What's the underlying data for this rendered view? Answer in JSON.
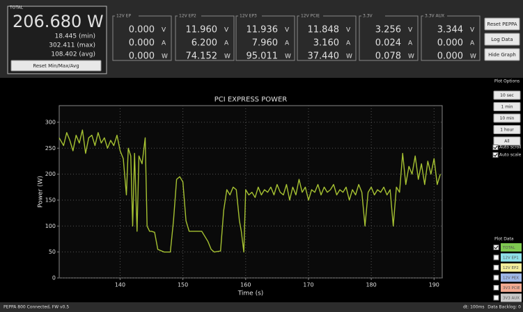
{
  "total": {
    "label": "TOTAL",
    "value": "206.680 W",
    "min": "18.445 (min)",
    "max": "302.411 (max)",
    "avg": "108.402 (avg)",
    "reset": "Reset Min/Max/Avg"
  },
  "channels": [
    {
      "name": "12V EP",
      "rows": [
        {
          "value": "0.000",
          "unit": "V"
        },
        {
          "value": "0.000",
          "unit": "A"
        },
        {
          "value": "0.000",
          "unit": "W"
        }
      ]
    },
    {
      "name": "12V EP2",
      "rows": [
        {
          "value": "11.960",
          "unit": "V"
        },
        {
          "value": "6.200",
          "unit": "A"
        },
        {
          "value": "74.152",
          "unit": "W"
        }
      ]
    },
    {
      "name": "12V EP3",
      "rows": [
        {
          "value": "11.936",
          "unit": "V"
        },
        {
          "value": "7.960",
          "unit": "A"
        },
        {
          "value": "95.011",
          "unit": "W"
        }
      ]
    },
    {
      "name": "12V PCIE",
      "rows": [
        {
          "value": "11.848",
          "unit": "V"
        },
        {
          "value": "3.160",
          "unit": "A"
        },
        {
          "value": "37.440",
          "unit": "W"
        }
      ]
    },
    {
      "name": "3.3V",
      "rows": [
        {
          "value": "3.256",
          "unit": "V"
        },
        {
          "value": "0.024",
          "unit": "A"
        },
        {
          "value": "0.078",
          "unit": "W"
        }
      ]
    },
    {
      "name": "3.3V AUX",
      "rows": [
        {
          "value": "3.344",
          "unit": "V"
        },
        {
          "value": "0.000",
          "unit": "A"
        },
        {
          "value": "0.000",
          "unit": "W"
        }
      ]
    }
  ],
  "buttons": [
    "Reset PEPPA",
    "Log Data",
    "Hide Graph"
  ],
  "plot_options": {
    "title": "Plot Options",
    "ranges": [
      "10 sec",
      "1 min",
      "10 min",
      "1 hour",
      "All"
    ],
    "checks": [
      "Auto scroll",
      "Auto scale"
    ]
  },
  "plot_data": {
    "title": "Plot Data",
    "items": [
      {
        "name": "TOTAL",
        "color": "#7ec850",
        "checked": true
      },
      {
        "name": "12V EP1",
        "color": "#8fe0e8",
        "checked": false
      },
      {
        "name": "12V EP2",
        "color": "#f2ec9a",
        "checked": false
      },
      {
        "name": "12V PEX",
        "color": "#9fb8e8",
        "checked": false
      },
      {
        "name": "3V3 PCIE",
        "color": "#f0a890",
        "checked": false
      },
      {
        "name": "3V3 AUX",
        "color": "#c8c8c8",
        "checked": false
      }
    ]
  },
  "status": {
    "left": "PEPPA 800 Connected, FW v0.5",
    "dt": "dt: 100ms",
    "backlog": "Data Backlog: 0"
  },
  "chart_data": {
    "type": "line",
    "title": "PCI EXPRESS POWER",
    "x_label": "Time (s)",
    "y_label": "Power (W)",
    "xlim": [
      130.3,
      191.3
    ],
    "ylim": [
      0,
      332
    ],
    "xticks": [
      140,
      150,
      160,
      170,
      180,
      190
    ],
    "yticks": [
      0,
      50,
      100,
      150,
      200,
      250,
      300
    ],
    "grid": true,
    "series": [
      {
        "name": "TOTAL",
        "color": "#a6c232",
        "x": [
          130.3,
          131,
          131.5,
          132,
          132.5,
          133,
          133.5,
          134,
          134.5,
          135,
          135.5,
          136,
          136.5,
          137,
          137.5,
          138,
          138.5,
          139,
          139.5,
          140,
          140.5,
          141,
          141.3,
          141.7,
          142,
          142.3,
          142.7,
          143,
          143.5,
          144,
          144.3,
          144.7,
          145,
          145.5,
          146,
          147,
          148,
          148.5,
          149,
          149.5,
          150,
          150.5,
          151,
          152,
          153,
          154,
          154.5,
          155,
          156,
          156.5,
          157,
          157.5,
          158,
          158.5,
          159,
          159.3,
          159.7,
          160,
          160.5,
          161,
          161.5,
          162,
          162.5,
          163,
          163.5,
          164,
          164.5,
          165,
          165.5,
          166,
          166.5,
          167,
          167.5,
          168,
          168.5,
          169,
          169.5,
          170,
          170.5,
          171,
          171.5,
          172,
          172.5,
          173,
          173.5,
          174,
          174.5,
          175,
          175.5,
          176,
          176.5,
          177,
          177.5,
          178,
          178.5,
          179,
          179.5,
          180,
          180.5,
          181,
          181.5,
          182,
          182.5,
          183,
          183.5,
          184,
          184.5,
          185,
          185.5,
          186,
          186.5,
          187,
          187.5,
          188,
          188.5,
          189,
          189.5,
          190,
          190.5,
          191
        ],
        "values": [
          270,
          255,
          280,
          265,
          245,
          275,
          260,
          285,
          240,
          270,
          275,
          255,
          280,
          260,
          270,
          250,
          265,
          255,
          275,
          245,
          230,
          160,
          250,
          235,
          100,
          240,
          90,
          235,
          220,
          270,
          100,
          90,
          90,
          88,
          55,
          50,
          50,
          110,
          190,
          195,
          185,
          110,
          90,
          90,
          90,
          70,
          55,
          50,
          52,
          130,
          170,
          160,
          175,
          170,
          110,
          90,
          50,
          170,
          160,
          165,
          155,
          175,
          160,
          170,
          165,
          175,
          160,
          180,
          165,
          160,
          180,
          150,
          175,
          160,
          190,
          165,
          175,
          150,
          170,
          165,
          180,
          160,
          175,
          165,
          170,
          180,
          160,
          170,
          165,
          175,
          150,
          170,
          160,
          180,
          165,
          100,
          165,
          175,
          160,
          170,
          165,
          175,
          160,
          170,
          100,
          175,
          165,
          240,
          180,
          215,
          200,
          235,
          190,
          220,
          180,
          225,
          200,
          230,
          180,
          200
        ]
      }
    ]
  }
}
